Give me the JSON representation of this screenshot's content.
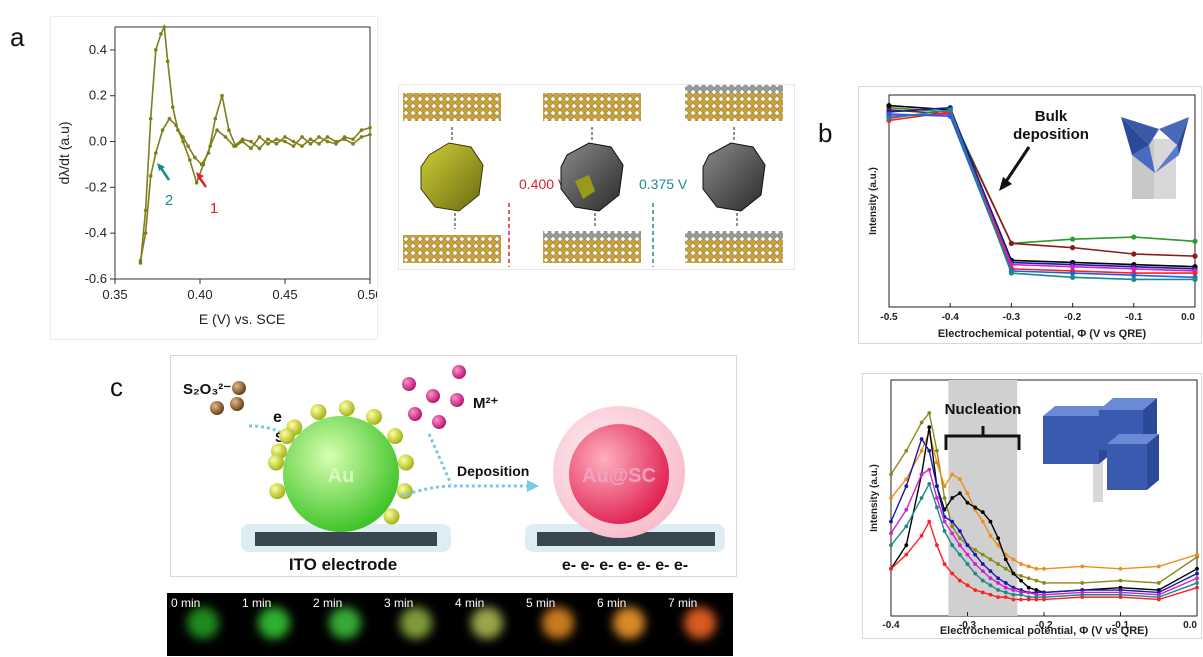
{
  "panel_labels": {
    "a": "a",
    "b": "b",
    "c": "c"
  },
  "panel_a": {
    "ylabel": "dλ/dt (a.u)",
    "xlabel": "E (V) vs. SCE",
    "x_ticks": [
      "0.35",
      "0.40",
      "0.45",
      "0.50"
    ],
    "y_ticks": [
      "0.4",
      "0.2",
      "0.0",
      "-0.2",
      "-0.4",
      "-0.6"
    ],
    "arrow_labels": [
      {
        "text": "2",
        "color": "#1a8c8c"
      },
      {
        "text": "1",
        "color": "#e0202a"
      }
    ],
    "line_color": "#7f7f1a"
  },
  "panel_a_schematic": {
    "potentials": [
      {
        "text": "0.400 V",
        "color": "#e0202a"
      },
      {
        "text": "0.375 V",
        "color": "#1a8c8c"
      }
    ]
  },
  "panel_b_top": {
    "ylabel": "Intensity (a.u.)",
    "xlabel": "Electrochemical potential, Φ (V vs QRE)",
    "x_ticks": [
      "-0.5",
      "-0.4",
      "-0.3",
      "-0.2",
      "-0.1",
      "0.0"
    ],
    "annotation_line1": "Bulk",
    "annotation_line2": "deposition"
  },
  "panel_b_bottom": {
    "ylabel": "Intensity (a.u.)",
    "xlabel": "Electrochemical potential, Φ (V vs QRE)",
    "x_ticks": [
      "-0.4",
      "-0.3",
      "-0.2",
      "-0.1",
      "0.0"
    ],
    "annotation": "Nucleation"
  },
  "panel_c": {
    "ion_s2o3": "S₂O₃²⁻",
    "electron": "e",
    "sulfide": "S²⁻",
    "metal_ion": "M²⁺",
    "au_label": "Au",
    "deposition": "Deposition",
    "core_shell": "Au@SC",
    "electrode": "ITO electrode",
    "electrons": "e- e- e- e- e- e- e-"
  },
  "timelapse": [
    {
      "label": "0 min",
      "color": "#1f8a1f"
    },
    {
      "label": "1 min",
      "color": "#2fb02f"
    },
    {
      "label": "2 min",
      "color": "#36a936"
    },
    {
      "label": "3 min",
      "color": "#7f9a3a"
    },
    {
      "label": "4 min",
      "color": "#9aa44a"
    },
    {
      "label": "5 min",
      "color": "#c87a20"
    },
    {
      "label": "6 min",
      "color": "#d88a28"
    },
    {
      "label": "7 min",
      "color": "#d85a20"
    }
  ],
  "chart_data": [
    {
      "type": "line",
      "series": [
        {
          "name": "",
          "x": [
            0.365,
            0.368,
            0.371,
            0.374,
            0.377,
            0.379,
            0.381,
            0.384,
            0.387,
            0.39,
            0.393,
            0.397,
            0.401,
            0.405,
            0.409,
            0.413,
            0.417,
            0.421,
            0.425,
            0.43,
            0.435,
            0.44,
            0.445,
            0.45,
            0.455,
            0.46,
            0.465,
            0.47,
            0.475,
            0.48,
            0.485,
            0.49,
            0.495,
            0.5
          ],
          "y": [
            -0.53,
            -0.3,
            0.1,
            0.4,
            0.47,
            0.5,
            0.35,
            0.15,
            0.05,
            0.02,
            -0.02,
            -0.07,
            -0.1,
            -0.05,
            0.1,
            0.2,
            0.05,
            -0.02,
            0.0,
            -0.03,
            0.02,
            -0.01,
            0.01,
            0.0,
            -0.02,
            0.02,
            -0.01,
            0.02,
            0.0,
            -0.01,
            0.02,
            0.01,
            0.05,
            0.06
          ]
        },
        {
          "name": "",
          "x": [
            0.365,
            0.368,
            0.371,
            0.374,
            0.378,
            0.382,
            0.386,
            0.39,
            0.394,
            0.398,
            0.402,
            0.406,
            0.41,
            0.415,
            0.42,
            0.425,
            0.43,
            0.435,
            0.44,
            0.445,
            0.45,
            0.455,
            0.46,
            0.465,
            0.47,
            0.475,
            0.48,
            0.485,
            0.49,
            0.495,
            0.5
          ],
          "y": [
            -0.52,
            -0.4,
            -0.15,
            -0.05,
            0.05,
            0.1,
            0.07,
            0.0,
            -0.08,
            -0.18,
            -0.1,
            -0.02,
            0.05,
            0.02,
            -0.02,
            0.01,
            0.0,
            -0.03,
            0.01,
            -0.01,
            0.02,
            0.0,
            -0.02,
            0.01,
            -0.01,
            0.02,
            0.0,
            0.01,
            -0.01,
            0.02,
            0.03
          ]
        }
      ],
      "xlim": [
        0.35,
        0.5
      ],
      "ylim": [
        -0.6,
        0.5
      ]
    },
    {
      "type": "line",
      "x": [
        -0.5,
        -0.4,
        -0.3,
        -0.2,
        -0.1,
        0.0
      ],
      "series": [
        {
          "name": "",
          "color": "#2a9a2a",
          "values": [
            0.94,
            0.92,
            0.3,
            0.32,
            0.33,
            0.31
          ]
        },
        {
          "name": "",
          "color": "#8b1a1a",
          "values": [
            0.93,
            0.91,
            0.3,
            0.28,
            0.25,
            0.24
          ]
        },
        {
          "name": "",
          "color": "#000000",
          "values": [
            0.95,
            0.93,
            0.22,
            0.21,
            0.2,
            0.19
          ]
        },
        {
          "name": "",
          "color": "#1a1aa8",
          "values": [
            0.92,
            0.94,
            0.21,
            0.2,
            0.19,
            0.18
          ]
        },
        {
          "name": "",
          "color": "#d020d0",
          "values": [
            0.9,
            0.91,
            0.2,
            0.19,
            0.18,
            0.17
          ]
        },
        {
          "name": "",
          "color": "#ff2020",
          "values": [
            0.88,
            0.92,
            0.18,
            0.17,
            0.16,
            0.16
          ]
        },
        {
          "name": "",
          "color": "#2060e0",
          "values": [
            0.91,
            0.9,
            0.17,
            0.16,
            0.15,
            0.14
          ]
        },
        {
          "name": "",
          "color": "#1a8a8a",
          "values": [
            0.89,
            0.93,
            0.16,
            0.14,
            0.13,
            0.13
          ]
        }
      ],
      "xlim": [
        -0.5,
        0.0
      ],
      "ylim": [
        0,
        1
      ]
    },
    {
      "type": "line",
      "x": [
        -0.4,
        -0.38,
        -0.36,
        -0.35,
        -0.34,
        -0.33,
        -0.32,
        -0.31,
        -0.3,
        -0.29,
        -0.28,
        -0.27,
        -0.26,
        -0.25,
        -0.24,
        -0.23,
        -0.22,
        -0.21,
        -0.2,
        -0.15,
        -0.1,
        -0.05,
        0.0
      ],
      "series": [
        {
          "name": "",
          "color": "#8a8a1a",
          "values": [
            0.6,
            0.7,
            0.82,
            0.86,
            0.7,
            0.5,
            0.38,
            0.33,
            0.3,
            0.28,
            0.26,
            0.24,
            0.22,
            0.2,
            0.18,
            0.17,
            0.16,
            0.15,
            0.14,
            0.14,
            0.15,
            0.14,
            0.25
          ]
        },
        {
          "name": "",
          "color": "#f08c1a",
          "values": [
            0.5,
            0.58,
            0.7,
            0.78,
            0.65,
            0.55,
            0.6,
            0.58,
            0.52,
            0.45,
            0.4,
            0.34,
            0.3,
            0.26,
            0.24,
            0.22,
            0.21,
            0.2,
            0.2,
            0.21,
            0.2,
            0.21,
            0.26
          ]
        },
        {
          "name": "",
          "color": "#000000",
          "values": [
            0.2,
            0.3,
            0.6,
            0.8,
            0.55,
            0.45,
            0.5,
            0.52,
            0.48,
            0.46,
            0.44,
            0.4,
            0.33,
            0.24,
            0.18,
            0.15,
            0.12,
            0.11,
            0.1,
            0.11,
            0.12,
            0.11,
            0.2
          ]
        },
        {
          "name": "",
          "color": "#1a1aa8",
          "values": [
            0.4,
            0.55,
            0.75,
            0.7,
            0.55,
            0.42,
            0.4,
            0.36,
            0.3,
            0.26,
            0.22,
            0.19,
            0.16,
            0.14,
            0.12,
            0.11,
            0.1,
            0.1,
            0.1,
            0.11,
            0.11,
            0.1,
            0.18
          ]
        },
        {
          "name": "",
          "color": "#d020d0",
          "values": [
            0.35,
            0.45,
            0.6,
            0.62,
            0.5,
            0.4,
            0.35,
            0.3,
            0.26,
            0.22,
            0.19,
            0.16,
            0.14,
            0.12,
            0.11,
            0.1,
            0.1,
            0.09,
            0.09,
            0.1,
            0.1,
            0.09,
            0.16
          ]
        },
        {
          "name": "",
          "color": "#1a8a8a",
          "values": [
            0.3,
            0.38,
            0.5,
            0.56,
            0.46,
            0.36,
            0.3,
            0.26,
            0.22,
            0.18,
            0.15,
            0.13,
            0.11,
            0.1,
            0.09,
            0.09,
            0.08,
            0.08,
            0.08,
            0.09,
            0.09,
            0.08,
            0.14
          ]
        },
        {
          "name": "",
          "color": "#ff2020",
          "values": [
            0.2,
            0.26,
            0.34,
            0.4,
            0.3,
            0.22,
            0.18,
            0.15,
            0.13,
            0.11,
            0.1,
            0.09,
            0.08,
            0.08,
            0.07,
            0.07,
            0.07,
            0.07,
            0.07,
            0.08,
            0.08,
            0.07,
            0.12
          ]
        }
      ],
      "xlim": [
        -0.4,
        0.0
      ],
      "ylim": [
        0,
        1
      ],
      "shaded_region": [
        -0.325,
        -0.235
      ]
    }
  ]
}
